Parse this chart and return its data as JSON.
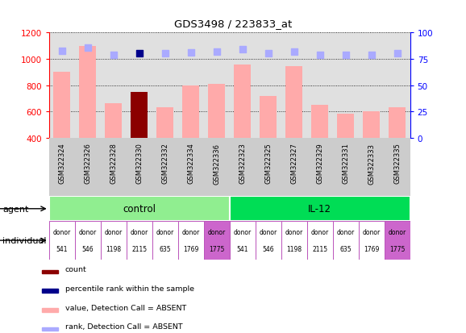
{
  "title": "GDS3498 / 223833_at",
  "samples": [
    "GSM322324",
    "GSM322326",
    "GSM322328",
    "GSM322330",
    "GSM322332",
    "GSM322334",
    "GSM322336",
    "GSM322323",
    "GSM322325",
    "GSM322327",
    "GSM322329",
    "GSM322331",
    "GSM322333",
    "GSM322335"
  ],
  "values": [
    900,
    1100,
    665,
    750,
    630,
    800,
    810,
    960,
    720,
    945,
    648,
    582,
    600,
    630
  ],
  "value_colors": [
    "#ffaaaa",
    "#ffaaaa",
    "#ffaaaa",
    "#8b0000",
    "#ffaaaa",
    "#ffaaaa",
    "#ffaaaa",
    "#ffaaaa",
    "#ffaaaa",
    "#ffaaaa",
    "#ffaaaa",
    "#ffaaaa",
    "#ffaaaa",
    "#ffaaaa"
  ],
  "rank_colors": [
    "#aaaaff",
    "#aaaaff",
    "#aaaaff",
    "#00008b",
    "#aaaaff",
    "#aaaaff",
    "#aaaaff",
    "#aaaaff",
    "#aaaaff",
    "#aaaaff",
    "#aaaaff",
    "#aaaaff",
    "#aaaaff",
    "#aaaaff"
  ],
  "rank_values": [
    83,
    86,
    79,
    80,
    80,
    81,
    82,
    84,
    80,
    82,
    79,
    79,
    79,
    80
  ],
  "ylim_left": [
    400,
    1200
  ],
  "ylim_right": [
    0,
    100
  ],
  "yticks_left": [
    400,
    600,
    800,
    1000,
    1200
  ],
  "yticks_right": [
    0,
    25,
    50,
    75,
    100
  ],
  "agent_groups": [
    {
      "label": "control",
      "start": 0,
      "end": 6,
      "color": "#90ee90"
    },
    {
      "label": "IL-12",
      "start": 7,
      "end": 13,
      "color": "#00dd55"
    }
  ],
  "individual_labels": [
    "donor\n541",
    "donor\n546",
    "donor\n1198",
    "donor\n2115",
    "donor\n635",
    "donor\n1769",
    "donor\n1775",
    "donor\n541",
    "donor\n546",
    "donor\n1198",
    "donor\n2115",
    "donor\n635",
    "donor\n1769",
    "donor\n1775"
  ],
  "individual_colors": [
    "#ffffff",
    "#ffffff",
    "#ffffff",
    "#ffffff",
    "#ffffff",
    "#ffffff",
    "#cc66cc",
    "#ffffff",
    "#ffffff",
    "#ffffff",
    "#ffffff",
    "#ffffff",
    "#ffffff",
    "#cc66cc"
  ],
  "legend_items": [
    {
      "color": "#8b0000",
      "label": "count"
    },
    {
      "color": "#00008b",
      "label": "percentile rank within the sample"
    },
    {
      "color": "#ffaaaa",
      "label": "value, Detection Call = ABSENT"
    },
    {
      "color": "#aaaaff",
      "label": "rank, Detection Call = ABSENT"
    }
  ],
  "bar_width": 0.65,
  "sample_area_bg": "#cccccc",
  "plot_bg": "#e0e0e0"
}
